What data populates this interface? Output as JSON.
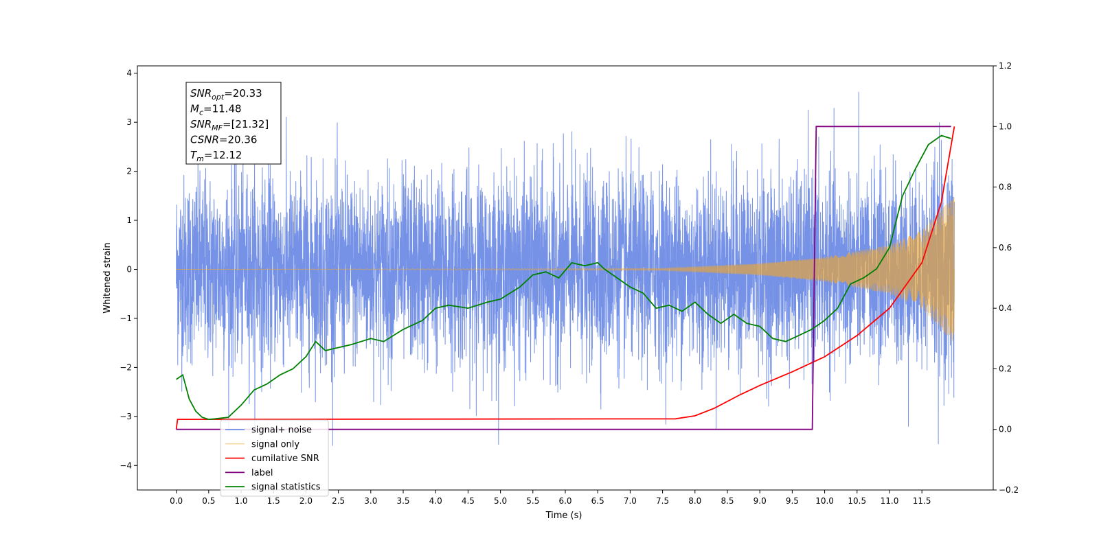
{
  "chart_data": {
    "type": "line",
    "xlabel": "Time (s)",
    "ylabel": "Whitened strain",
    "xlim": [
      -0.6,
      12.6
    ],
    "ylim": [
      -4.5,
      4.15
    ],
    "y2lim": [
      -0.2,
      1.2
    ],
    "x_ticks": [
      "0.0",
      "0.5",
      "1.0",
      "1.5",
      "2.0",
      "2.5",
      "3.0",
      "3.5",
      "4.0",
      "4.5",
      "5.0",
      "5.5",
      "6.0",
      "6.5",
      "7.0",
      "7.5",
      "8.0",
      "8.5",
      "9.0",
      "9.5",
      "10.0",
      "10.5",
      "11.0",
      "11.5"
    ],
    "y_ticks": [
      "−4",
      "−3",
      "−2",
      "−1",
      "0",
      "1",
      "2",
      "3",
      "4"
    ],
    "y2_ticks": [
      "−0.2",
      "0.0",
      "0.2",
      "0.4",
      "0.6",
      "0.8",
      "1.0",
      "1.2"
    ],
    "legend_position": "lower-left",
    "stats": [
      {
        "name": "SNR",
        "sub": "opt",
        "value": "=20.33"
      },
      {
        "name": "M",
        "sub": "c",
        "value": "=11.48"
      },
      {
        "name": "SNR",
        "sub": "MF",
        "value": "=[21.32]"
      },
      {
        "name": "CSNR",
        "sub": "",
        "value": "=20.36"
      },
      {
        "name": "T",
        "sub": "m",
        "value": "=12.12"
      }
    ],
    "series": [
      {
        "name": "signal+ noise",
        "axis": "left",
        "color": "#6f8ce6",
        "description_values": "noise band approx ±1.2 std, peaks to ±3.8, t=0..12"
      },
      {
        "name": "signal only",
        "axis": "left",
        "color": "#f5a623",
        "amplitude": {
          "t": [
            0,
            7.5,
            9,
            10,
            11,
            11.5,
            12
          ],
          "a": [
            0.0,
            0.02,
            0.12,
            0.25,
            0.5,
            0.8,
            1.5
          ]
        }
      },
      {
        "name": "cumilative SNR",
        "axis": "right",
        "color": "#ff0000",
        "x": [
          0.0,
          0.02,
          7.7,
          8.0,
          8.3,
          8.7,
          9.0,
          9.5,
          10.0,
          10.5,
          11.0,
          11.5,
          11.8,
          12.0
        ],
        "values": [
          0.0,
          0.033,
          0.035,
          0.045,
          0.07,
          0.115,
          0.145,
          0.19,
          0.24,
          0.31,
          0.4,
          0.55,
          0.75,
          1.0
        ]
      },
      {
        "name": "label",
        "axis": "right",
        "color": "#800080",
        "x": [
          0.0,
          9.81,
          9.87,
          11.95
        ],
        "values": [
          0.0,
          0.0,
          1.0,
          1.0
        ]
      },
      {
        "name": "signal statistics",
        "axis": "right",
        "color": "#008000",
        "x": [
          0.0,
          0.1,
          0.2,
          0.3,
          0.4,
          0.5,
          0.6,
          0.8,
          1.0,
          1.2,
          1.4,
          1.6,
          1.8,
          2.0,
          2.15,
          2.3,
          2.5,
          2.7,
          3.0,
          3.2,
          3.5,
          3.8,
          4.0,
          4.2,
          4.5,
          4.8,
          5.0,
          5.3,
          5.5,
          5.7,
          5.9,
          6.1,
          6.3,
          6.5,
          6.6,
          6.8,
          7.0,
          7.2,
          7.4,
          7.6,
          7.8,
          8.0,
          8.2,
          8.4,
          8.6,
          8.8,
          9.0,
          9.2,
          9.4,
          9.6,
          9.8,
          10.0,
          10.2,
          10.4,
          10.6,
          10.8,
          11.0,
          11.2,
          11.4,
          11.6,
          11.8,
          11.95
        ],
        "values": [
          0.165,
          0.18,
          0.1,
          0.06,
          0.04,
          0.033,
          0.035,
          0.04,
          0.08,
          0.13,
          0.15,
          0.18,
          0.2,
          0.24,
          0.29,
          0.26,
          0.27,
          0.28,
          0.3,
          0.29,
          0.33,
          0.36,
          0.4,
          0.41,
          0.4,
          0.42,
          0.43,
          0.47,
          0.51,
          0.52,
          0.5,
          0.55,
          0.54,
          0.55,
          0.53,
          0.5,
          0.47,
          0.45,
          0.4,
          0.41,
          0.39,
          0.42,
          0.38,
          0.35,
          0.38,
          0.35,
          0.34,
          0.3,
          0.29,
          0.31,
          0.33,
          0.36,
          0.4,
          0.48,
          0.5,
          0.53,
          0.6,
          0.77,
          0.86,
          0.94,
          0.97,
          0.96
        ]
      }
    ]
  }
}
